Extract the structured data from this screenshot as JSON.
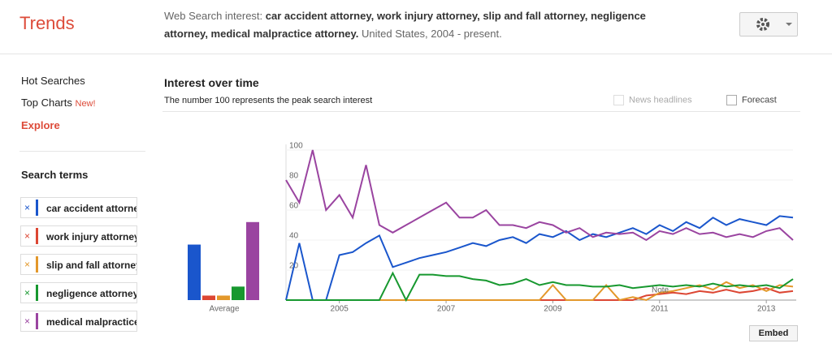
{
  "header": {
    "logo": "Trends",
    "prefix": "Web Search interest:",
    "query": "car accident attorney, work injury attorney, slip and fall attorney, negligence attorney, medical malpractice attorney.",
    "suffix": "United States, 2004 - present."
  },
  "nav": {
    "hot": "Hot Searches",
    "top": "Top Charts",
    "new": "New!",
    "explore": "Explore",
    "terms_label": "Search terms"
  },
  "section": {
    "title": "Interest over time",
    "subtitle": "The number 100 represents the peak search interest",
    "news": "News headlines",
    "forecast": "Forecast",
    "embed": "Embed"
  },
  "chart_data": [
    {
      "type": "bar",
      "xlabel": "Average",
      "values": [
        37,
        3,
        3,
        9,
        52
      ],
      "colors": [
        "#1a56cc",
        "#dc4633",
        "#e3982b",
        "#17982f",
        "#9a44a0"
      ],
      "ylim": [
        0,
        100
      ]
    },
    {
      "type": "line",
      "annotation": "Note",
      "x": [
        2004,
        2004.25,
        2004.5,
        2004.75,
        2005,
        2005.25,
        2005.5,
        2005.75,
        2006,
        2006.25,
        2006.5,
        2006.75,
        2007,
        2007.25,
        2007.5,
        2007.75,
        2008,
        2008.25,
        2008.5,
        2008.75,
        2009,
        2009.25,
        2009.5,
        2009.75,
        2010,
        2010.25,
        2010.5,
        2010.75,
        2011,
        2011.25,
        2011.5,
        2011.75,
        2012,
        2012.25,
        2012.5,
        2012.75,
        2013,
        2013.25,
        2013.5
      ],
      "xlim": [
        2004,
        2013.5
      ],
      "xticks": [
        2005,
        2007,
        2009,
        2011,
        2013
      ],
      "ylim": [
        0,
        100
      ],
      "yticks": [
        20,
        40,
        60,
        80,
        100
      ],
      "grid": true,
      "series": [
        {
          "name": "car accident attorney",
          "color": "#1a56cc",
          "values": [
            0,
            38,
            0,
            0,
            30,
            32,
            38,
            43,
            22,
            25,
            28,
            30,
            32,
            35,
            38,
            36,
            40,
            42,
            38,
            44,
            42,
            46,
            40,
            44,
            42,
            45,
            48,
            44,
            50,
            46,
            52,
            48,
            55,
            50,
            54,
            52,
            50,
            56,
            55
          ]
        },
        {
          "name": "work injury attorney",
          "color": "#dc4633",
          "values": [
            0,
            0,
            0,
            0,
            0,
            0,
            0,
            0,
            0,
            0,
            0,
            0,
            0,
            0,
            0,
            0,
            0,
            0,
            0,
            0,
            0,
            0,
            0,
            0,
            0,
            0,
            0,
            3,
            4,
            5,
            4,
            6,
            5,
            7,
            5,
            6,
            8,
            5,
            6
          ]
        },
        {
          "name": "slip and fall attorney",
          "color": "#e3982b",
          "values": [
            0,
            0,
            0,
            0,
            0,
            0,
            0,
            0,
            0,
            0,
            0,
            0,
            0,
            0,
            0,
            0,
            0,
            0,
            0,
            0,
            10,
            0,
            0,
            0,
            10,
            0,
            2,
            0,
            5,
            6,
            8,
            10,
            7,
            12,
            8,
            10,
            6,
            10,
            9
          ]
        },
        {
          "name": "negligence attorney",
          "color": "#17982f",
          "values": [
            0,
            0,
            0,
            0,
            0,
            0,
            0,
            0,
            18,
            0,
            17,
            17,
            16,
            16,
            14,
            13,
            10,
            11,
            14,
            10,
            12,
            10,
            10,
            9,
            9,
            10,
            8,
            9,
            10,
            9,
            10,
            9,
            11,
            9,
            10,
            9,
            10,
            8,
            14
          ]
        },
        {
          "name": "medical malpractice attorney",
          "color": "#9a44a0",
          "values": [
            80,
            65,
            100,
            60,
            70,
            55,
            90,
            50,
            45,
            50,
            55,
            60,
            65,
            55,
            55,
            60,
            50,
            50,
            48,
            52,
            50,
            45,
            48,
            42,
            45,
            44,
            45,
            40,
            46,
            44,
            48,
            44,
            45,
            42,
            44,
            42,
            46,
            48,
            40
          ]
        }
      ]
    }
  ]
}
